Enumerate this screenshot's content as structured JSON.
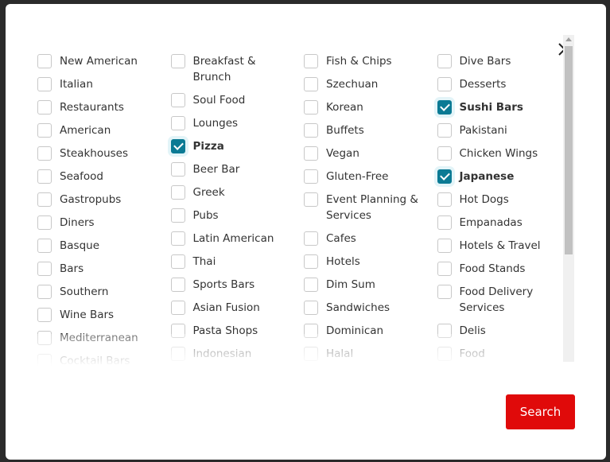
{
  "modal": {
    "close_icon": "close-x-icon",
    "search_label": "Search",
    "accent_color": "#0b7a94",
    "button_color": "#e00a0a",
    "columns": [
      [
        {
          "label": "New American",
          "checked": false
        },
        {
          "label": "Italian",
          "checked": false
        },
        {
          "label": "Restaurants",
          "checked": false
        },
        {
          "label": "American",
          "checked": false
        },
        {
          "label": "Steakhouses",
          "checked": false
        },
        {
          "label": "Seafood",
          "checked": false
        },
        {
          "label": "Gastropubs",
          "checked": false
        },
        {
          "label": "Diners",
          "checked": false
        },
        {
          "label": "Basque",
          "checked": false
        },
        {
          "label": "Bars",
          "checked": false
        },
        {
          "label": "Southern",
          "checked": false
        },
        {
          "label": "Wine Bars",
          "checked": false
        },
        {
          "label": "Mediterranean",
          "checked": false
        },
        {
          "label": "Cocktail Bars",
          "checked": false
        }
      ],
      [
        {
          "label": "Breakfast & Brunch",
          "checked": false
        },
        {
          "label": "Soul Food",
          "checked": false
        },
        {
          "label": "Lounges",
          "checked": false
        },
        {
          "label": "Pizza",
          "checked": true
        },
        {
          "label": "Beer Bar",
          "checked": false
        },
        {
          "label": "Greek",
          "checked": false
        },
        {
          "label": "Pubs",
          "checked": false
        },
        {
          "label": "Latin American",
          "checked": false
        },
        {
          "label": "Thai",
          "checked": false
        },
        {
          "label": "Sports Bars",
          "checked": false
        },
        {
          "label": "Asian Fusion",
          "checked": false
        },
        {
          "label": "Pasta Shops",
          "checked": false
        },
        {
          "label": "Indonesian",
          "checked": false
        }
      ],
      [
        {
          "label": "Fish & Chips",
          "checked": false
        },
        {
          "label": "Szechuan",
          "checked": false
        },
        {
          "label": "Korean",
          "checked": false
        },
        {
          "label": "Buffets",
          "checked": false
        },
        {
          "label": "Vegan",
          "checked": false
        },
        {
          "label": "Gluten-Free",
          "checked": false
        },
        {
          "label": "Event Planning & Services",
          "checked": false
        },
        {
          "label": "Cafes",
          "checked": false
        },
        {
          "label": "Hotels",
          "checked": false
        },
        {
          "label": "Dim Sum",
          "checked": false
        },
        {
          "label": "Sandwiches",
          "checked": false
        },
        {
          "label": "Dominican",
          "checked": false
        },
        {
          "label": "Halal",
          "checked": false
        }
      ],
      [
        {
          "label": "Dive Bars",
          "checked": false
        },
        {
          "label": "Desserts",
          "checked": false
        },
        {
          "label": "Sushi Bars",
          "checked": true
        },
        {
          "label": "Pakistani",
          "checked": false
        },
        {
          "label": "Chicken Wings",
          "checked": false
        },
        {
          "label": "Japanese",
          "checked": true
        },
        {
          "label": "Hot Dogs",
          "checked": false
        },
        {
          "label": "Empanadas",
          "checked": false
        },
        {
          "label": "Hotels & Travel",
          "checked": false
        },
        {
          "label": "Food Stands",
          "checked": false
        },
        {
          "label": "Food Delivery Services",
          "checked": false
        },
        {
          "label": "Delis",
          "checked": false
        },
        {
          "label": "Food",
          "checked": false
        }
      ]
    ]
  }
}
